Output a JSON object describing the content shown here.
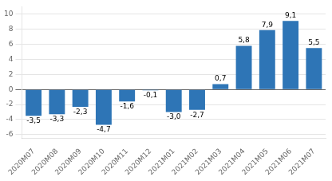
{
  "chart_data": {
    "type": "bar",
    "categories": [
      "2020M07",
      "2020M08",
      "2020M09",
      "2020M10",
      "2020M11",
      "2020M12",
      "2021M01",
      "2021M02",
      "2021M03",
      "2021M04",
      "2021M05",
      "2021M06",
      "2021M07"
    ],
    "values": [
      -3.5,
      -3.3,
      -2.3,
      -4.7,
      -1.6,
      -0.1,
      -3.0,
      -2.7,
      0.7,
      5.8,
      7.9,
      9.1,
      5.5
    ],
    "value_labels": [
      "-3,5",
      "-3,3",
      "-2,3",
      "-4,7",
      "-1,6",
      "-0,1",
      "-3,0",
      "-2,7",
      "0,7",
      "5,8",
      "7,9",
      "9,1",
      "5,5"
    ],
    "data_labels": true,
    "color": "#2e75b6",
    "ylim": [
      -6.5,
      11.0
    ],
    "yticks": [
      -6,
      -4,
      -2,
      0,
      2,
      4,
      6,
      8,
      10
    ],
    "grid": true
  }
}
